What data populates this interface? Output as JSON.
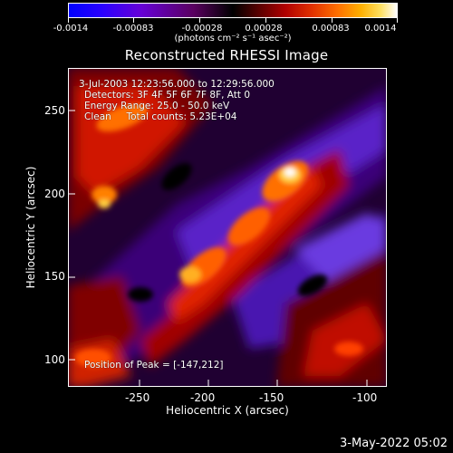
{
  "colorbar": {
    "tick_labels": [
      "-0.0014",
      "-0.00083",
      "-0.00028",
      "0.00028",
      "0.00083",
      "0.0014"
    ],
    "units": "(photons cm⁻² s⁻¹ asec⁻²)"
  },
  "title": "Reconstructed RHESSI Image",
  "info": {
    "time_range": "3-Jul-2003 12:23:56.000 to 12:29:56.000",
    "detectors": "Detectors: 3F 4F 5F 6F 7F 8F, Att 0",
    "energy": "Energy Range: 25.0 - 50.0 keV",
    "clean": "Clean     Total counts: 5.23E+04",
    "peak": "Position of Peak = [-147,212]"
  },
  "axes": {
    "x_title": "Heliocentric X (arcsec)",
    "y_title": "Heliocentric Y (arcsec)",
    "x_ticks": [
      "-250",
      "-200",
      "-150",
      "-100"
    ],
    "y_ticks": [
      "250",
      "200",
      "150",
      "100"
    ]
  },
  "footer_date": "3-May-2022 05:02"
}
